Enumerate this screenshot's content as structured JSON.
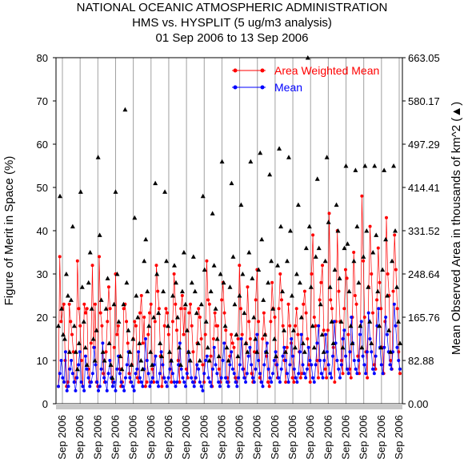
{
  "chart_data": {
    "type": "line",
    "title": [
      "NATIONAL OCEANIC ATMOSPHERIC ADMINISTRATION",
      "HMS vs. HYSPLIT (5 ug/m3 analysis)",
      "01 Sep 2006 to 13 Sep 2006"
    ],
    "ylabel": "Figure of Merit in Space (%)",
    "y2label": "Mean Observed Area in thousands of km^2 (▲)",
    "ylim": [
      0,
      80
    ],
    "y2lim": [
      0,
      663.05
    ],
    "yticks": [
      "0",
      "10",
      "20",
      "30",
      "40",
      "50",
      "60",
      "70",
      "80"
    ],
    "y2ticks": [
      "0.00",
      "82.88",
      "165.76",
      "248.64",
      "331.52",
      "414.41",
      "497.29",
      "580.17",
      "663.05"
    ],
    "xtick_label": "Sep 2006",
    "xtick_count": 20,
    "grid": "vertical",
    "legend_position": "top-right",
    "series": [
      {
        "name": "Area Weighted Mean",
        "color": "#ff0000",
        "marker": "circle",
        "values": [
          4,
          34,
          19,
          22,
          23,
          10,
          4,
          5,
          23,
          19,
          16,
          12,
          5,
          6,
          33,
          22,
          18,
          10,
          4,
          23,
          21,
          22,
          8,
          5,
          14,
          32,
          13,
          23,
          5,
          4,
          34,
          21,
          18,
          7,
          5,
          12,
          19,
          27,
          22,
          6,
          5,
          13,
          30,
          16,
          18,
          8,
          4,
          5,
          22,
          23,
          19,
          14,
          7,
          5,
          9,
          15,
          19,
          18,
          6,
          5,
          21,
          25,
          14,
          20,
          4,
          5,
          16,
          21,
          23,
          8,
          5,
          19,
          32,
          26,
          22,
          11,
          4,
          6,
          18,
          22,
          21,
          16,
          8,
          5,
          19,
          30,
          23,
          17,
          10,
          5,
          22,
          25,
          16,
          22,
          8,
          6,
          21,
          23,
          18,
          12,
          5,
          6,
          14,
          22,
          20,
          15,
          9,
          5,
          16,
          33,
          24,
          23,
          11,
          4,
          15,
          21,
          18,
          18,
          8,
          5,
          24,
          28,
          21,
          17,
          6,
          5,
          11,
          16,
          14,
          13,
          6,
          5,
          15,
          32,
          22,
          16,
          8,
          6,
          14,
          27,
          19,
          15,
          7,
          5,
          12,
          24,
          31,
          19,
          6,
          5,
          15,
          21,
          16,
          11,
          5,
          4,
          19,
          28,
          22,
          20,
          9,
          6,
          22,
          30,
          24,
          18,
          10,
          5,
          13,
          23,
          18,
          14,
          6,
          5,
          18,
          22,
          16,
          12,
          6,
          7,
          23,
          26,
          21,
          15,
          9,
          5,
          30,
          39,
          20,
          18,
          10,
          6,
          24,
          28,
          32,
          17,
          8,
          6,
          17,
          44,
          24,
          22,
          13,
          5,
          19,
          40,
          26,
          19,
          10,
          7,
          22,
          31,
          29,
          16,
          8,
          6,
          20,
          35,
          25,
          23,
          11,
          7,
          18,
          48,
          33,
          20,
          12,
          6,
          27,
          41,
          30,
          21,
          9,
          8,
          24,
          36,
          28,
          22,
          13,
          7,
          19,
          43,
          30,
          25,
          10,
          8,
          26,
          39,
          31,
          22,
          12,
          7
        ]
      },
      {
        "name": "Mean",
        "color": "#0000ff",
        "marker": "circle",
        "values": [
          4,
          7,
          10,
          6,
          5,
          12,
          3,
          4,
          8,
          10,
          7,
          5,
          3,
          6,
          9,
          12,
          5,
          4,
          3,
          11,
          8,
          6,
          4,
          5,
          7,
          13,
          9,
          5,
          3,
          4,
          8,
          14,
          6,
          5,
          3,
          7,
          10,
          6,
          4,
          5,
          3,
          8,
          11,
          7,
          5,
          4,
          3,
          6,
          9,
          12,
          6,
          5,
          4,
          3,
          7,
          8,
          12,
          6,
          5,
          4,
          8,
          15,
          10,
          7,
          4,
          5,
          6,
          9,
          11,
          5,
          4,
          7,
          12,
          9,
          6,
          5,
          4,
          6,
          8,
          10,
          7,
          5,
          4,
          5,
          9,
          14,
          8,
          6,
          5,
          4,
          7,
          12,
          10,
          6,
          5,
          4,
          6,
          9,
          8,
          5,
          4,
          3,
          7,
          10,
          11,
          6,
          5,
          4,
          8,
          13,
          9,
          7,
          5,
          4,
          6,
          10,
          14,
          6,
          5,
          4,
          9,
          12,
          8,
          7,
          5,
          4,
          6,
          9,
          15,
          8,
          6,
          5,
          7,
          11,
          13,
          9,
          6,
          5,
          8,
          16,
          10,
          7,
          5,
          4,
          9,
          12,
          14,
          8,
          6,
          5,
          7,
          10,
          12,
          9,
          6,
          5,
          8,
          11,
          13,
          10,
          7,
          5,
          9,
          15,
          11,
          8,
          6,
          5,
          7,
          12,
          16,
          9,
          7,
          6,
          8,
          13,
          10,
          9,
          6,
          5,
          9,
          14,
          18,
          10,
          7,
          6,
          10,
          16,
          12,
          9,
          7,
          6,
          11,
          19,
          14,
          10,
          8,
          6,
          9,
          15,
          17,
          11,
          8,
          7,
          12,
          20,
          14,
          10,
          8,
          7,
          10,
          16,
          19,
          11,
          9,
          7,
          12,
          21,
          15,
          12,
          8,
          7,
          11,
          18,
          22,
          13,
          9,
          7,
          13,
          20,
          16,
          12,
          9,
          8,
          12,
          23,
          18,
          13,
          10,
          8
        ]
      },
      {
        "name": "Mean Observed Area",
        "color": "#000000",
        "marker": "triangle",
        "axis": "y2",
        "values": [
          18,
          48,
          22,
          16,
          15,
          30,
          25,
          12,
          24,
          41,
          18,
          12,
          8,
          14,
          49,
          27,
          19,
          13,
          9,
          28,
          35,
          22,
          15,
          10,
          17,
          57,
          39,
          24,
          12,
          10,
          22,
          29,
          14,
          9,
          6,
          23,
          49,
          30,
          19,
          11,
          8,
          23,
          68,
          28,
          17,
          12,
          9,
          15,
          43,
          25,
          20,
          14,
          10,
          8,
          33,
          38,
          26,
          18,
          12,
          9,
          20,
          51,
          30,
          21,
          14,
          11,
          26,
          49,
          33,
          18,
          12,
          10,
          25,
          32,
          28,
          20,
          13,
          9,
          26,
          35,
          23,
          17,
          12,
          10,
          28,
          34,
          26,
          21,
          14,
          10,
          23,
          48,
          31,
          19,
          13,
          10,
          26,
          44,
          32,
          22,
          15,
          11,
          30,
          56,
          28,
          18,
          13,
          10,
          27,
          51,
          34,
          23,
          16,
          11,
          25,
          46,
          30,
          21,
          14,
          12,
          35,
          56,
          29,
          20,
          15,
          12,
          31,
          58,
          38,
          24,
          16,
          12,
          28,
          53,
          33,
          22,
          15,
          11,
          32,
          59,
          41,
          26,
          17,
          12,
          33,
          57,
          40,
          25,
          17,
          13,
          30,
          46,
          28,
          20,
          14,
          12,
          36,
          80,
          41,
          27,
          18,
          13,
          34,
          52,
          36,
          23,
          16,
          12,
          33,
          57,
          42,
          27,
          19,
          14,
          31,
          46,
          40,
          29,
          19,
          13,
          36,
          55,
          37,
          26,
          18,
          14,
          33,
          54,
          41,
          28,
          18,
          13,
          34,
          55,
          40,
          27,
          19,
          14,
          35,
          55,
          39,
          26,
          18,
          13,
          31,
          54,
          38,
          25,
          17,
          12,
          33,
          55,
          40,
          27,
          19,
          14
        ]
      }
    ]
  }
}
